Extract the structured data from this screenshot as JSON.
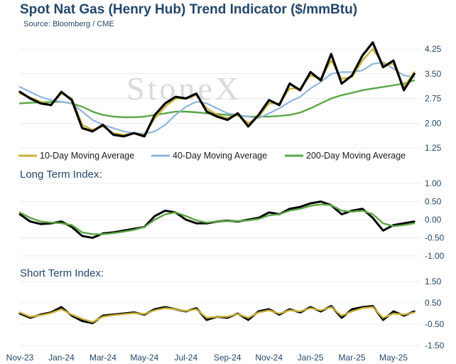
{
  "title": "Spot Nat Gas (Henry Hub) Trend Indicator ($/mmBtu)",
  "source": "Source: Bloomberg / CME",
  "watermark": "StoneX",
  "colors": {
    "price": "#000000",
    "ma10": "#c8b23a",
    "ma40": "#8fb6dc",
    "ma200": "#5aa744",
    "text": "#24476b",
    "grid": "#d9d9d9"
  },
  "chart_data": [
    {
      "type": "line",
      "panel": "price",
      "title": "Spot Nat Gas (Henry Hub) Trend Indicator ($/mmBtu)",
      "x_ticks": [
        "Nov-23",
        "Jan-24",
        "Mar-24",
        "May-24",
        "Jul-24",
        "Sep-24",
        "Nov-24",
        "Jan-25",
        "Mar-25",
        "May-25"
      ],
      "ylim": [
        1.25,
        4.25
      ],
      "y_ticks": [
        "4.25",
        "3.50",
        "2.75",
        "2.00",
        "1.25"
      ],
      "legend": [
        "10-Day Moving Average",
        "40-Day Moving Average",
        "200-Day Moving Average"
      ],
      "legend_position": "bottom",
      "x_month_index": [
        0,
        0.5,
        1,
        1.5,
        2,
        2.5,
        3,
        3.5,
        4,
        4.5,
        5,
        5.5,
        6,
        6.5,
        7,
        7.5,
        8,
        8.5,
        9,
        9.5,
        10,
        10.5,
        11,
        11.5,
        12,
        12.5,
        13,
        13.5,
        14,
        14.5,
        15,
        15.5,
        16,
        16.5,
        17,
        17.5,
        18,
        18.5,
        19
      ],
      "series": [
        {
          "name": "Spot",
          "values": [
            2.95,
            2.75,
            2.6,
            2.55,
            2.95,
            2.7,
            1.85,
            1.75,
            1.95,
            1.65,
            1.6,
            1.7,
            1.6,
            2.25,
            2.6,
            2.8,
            2.75,
            2.9,
            2.35,
            2.2,
            2.1,
            2.3,
            1.9,
            2.25,
            2.7,
            2.55,
            3.2,
            3.0,
            3.55,
            3.3,
            4.1,
            3.2,
            3.45,
            4.05,
            4.45,
            3.7,
            3.9,
            3.0,
            3.5
          ]
        },
        {
          "name": "10-Day Moving Average",
          "values": [
            2.9,
            2.78,
            2.65,
            2.55,
            2.9,
            2.75,
            1.95,
            1.8,
            1.9,
            1.7,
            1.65,
            1.68,
            1.65,
            2.15,
            2.5,
            2.75,
            2.75,
            2.85,
            2.45,
            2.25,
            2.15,
            2.25,
            2.0,
            2.2,
            2.6,
            2.6,
            3.05,
            3.05,
            3.45,
            3.35,
            3.9,
            3.35,
            3.4,
            3.9,
            4.25,
            3.8,
            3.8,
            3.1,
            3.55
          ]
        },
        {
          "name": "40-Day Moving Average",
          "values": [
            3.1,
            2.95,
            2.8,
            2.7,
            2.65,
            2.6,
            2.35,
            2.1,
            1.95,
            1.85,
            1.75,
            1.7,
            1.68,
            1.75,
            1.95,
            2.25,
            2.5,
            2.65,
            2.6,
            2.45,
            2.3,
            2.25,
            2.2,
            2.15,
            2.3,
            2.45,
            2.65,
            2.8,
            3.05,
            3.25,
            3.5,
            3.55,
            3.55,
            3.6,
            3.8,
            3.85,
            3.65,
            3.45,
            3.4
          ]
        },
        {
          "name": "200-Day Moving Average",
          "values": [
            2.6,
            2.62,
            2.63,
            2.64,
            2.65,
            2.6,
            2.5,
            2.35,
            2.25,
            2.2,
            2.18,
            2.18,
            2.2,
            2.25,
            2.3,
            2.35,
            2.35,
            2.33,
            2.3,
            2.28,
            2.25,
            2.23,
            2.2,
            2.2,
            2.2,
            2.22,
            2.25,
            2.32,
            2.45,
            2.6,
            2.75,
            2.85,
            2.92,
            3.0,
            3.05,
            3.1,
            3.15,
            3.2,
            3.3
          ]
        }
      ]
    },
    {
      "type": "line",
      "panel": "long",
      "title": "Long Term Index:",
      "ylim": [
        -1.0,
        1.0
      ],
      "y_ticks": [
        "1.00",
        "0.50",
        "0.00",
        "-0.50",
        "-1.00"
      ],
      "series": [
        {
          "name": "",
          "values": [
            0.15,
            -0.05,
            -0.12,
            -0.1,
            -0.05,
            -0.2,
            -0.45,
            -0.5,
            -0.38,
            -0.35,
            -0.3,
            -0.25,
            -0.2,
            0.1,
            0.25,
            0.2,
            0.0,
            -0.1,
            -0.1,
            -0.05,
            -0.03,
            -0.05,
            0.0,
            0.05,
            0.2,
            0.15,
            0.3,
            0.35,
            0.45,
            0.5,
            0.4,
            0.15,
            0.25,
            0.3,
            0.05,
            -0.3,
            -0.15,
            -0.1,
            -0.05
          ]
        },
        {
          "name": "",
          "values": [
            0.2,
            0.05,
            -0.05,
            -0.08,
            -0.1,
            -0.15,
            -0.35,
            -0.4,
            -0.4,
            -0.37,
            -0.33,
            -0.28,
            -0.2,
            0.0,
            0.15,
            0.2,
            0.1,
            -0.02,
            -0.08,
            -0.05,
            -0.04,
            -0.04,
            -0.02,
            0.02,
            0.12,
            0.15,
            0.25,
            0.3,
            0.38,
            0.42,
            0.4,
            0.25,
            0.22,
            0.25,
            0.15,
            -0.1,
            -0.18,
            -0.15,
            -0.1
          ]
        }
      ]
    },
    {
      "type": "line",
      "panel": "short",
      "title": "Short Term Index:",
      "ylim": [
        -1.5,
        1.5
      ],
      "y_ticks": [
        "1.50",
        "0.50",
        "-0.50",
        "-1.50"
      ],
      "series": [
        {
          "name": "",
          "values": [
            0.0,
            -0.2,
            -0.05,
            0.05,
            0.3,
            -0.1,
            -0.35,
            -0.45,
            -0.1,
            -0.05,
            0.0,
            0.05,
            -0.05,
            0.2,
            0.3,
            0.2,
            0.1,
            0.25,
            -0.3,
            -0.15,
            -0.2,
            0.0,
            -0.3,
            0.1,
            0.2,
            -0.05,
            0.2,
            0.05,
            0.3,
            0.1,
            0.35,
            -0.2,
            0.2,
            0.3,
            0.35,
            -0.3,
            0.1,
            -0.1,
            0.1
          ]
        },
        {
          "name": "",
          "values": [
            0.05,
            -0.15,
            -0.08,
            0.02,
            0.2,
            -0.05,
            -0.25,
            -0.4,
            -0.15,
            -0.08,
            -0.03,
            0.02,
            -0.02,
            0.15,
            0.25,
            0.2,
            0.12,
            0.2,
            -0.2,
            -0.15,
            -0.15,
            -0.02,
            -0.2,
            0.05,
            0.15,
            0.0,
            0.15,
            0.1,
            0.25,
            0.15,
            0.3,
            -0.1,
            0.1,
            0.25,
            0.3,
            -0.2,
            0.0,
            -0.05,
            0.05
          ]
        }
      ]
    }
  ]
}
